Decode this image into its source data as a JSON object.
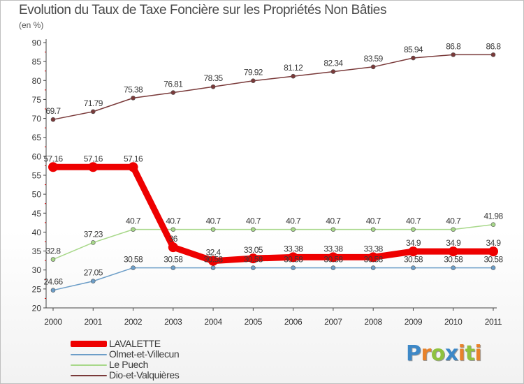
{
  "title": "Evolution du Taux de Taxe Foncière sur les Propriétés Non Bâties",
  "subtitle": "(en %)",
  "brand": {
    "text": "Proxiti",
    "colors": [
      "#3d88c7",
      "#e8822a",
      "#8fc23e",
      "#3d88c7",
      "#e8822a",
      "#8fc23e",
      "#e8822a"
    ]
  },
  "chart_data": {
    "type": "line",
    "x": [
      "2000",
      "2001",
      "2002",
      "2003",
      "2004",
      "2005",
      "2006",
      "2007",
      "2008",
      "2009",
      "2010",
      "2011"
    ],
    "ylim": [
      20,
      90
    ],
    "yticks": [
      20,
      25,
      30,
      35,
      40,
      45,
      50,
      55,
      60,
      65,
      70,
      75,
      80,
      85,
      90
    ],
    "grid": false,
    "legend_position": "bottom-left",
    "series": [
      {
        "name": "LAVALETTE",
        "color": "#ee0000",
        "values": [
          57.16,
          57.16,
          57.16,
          36,
          32.4,
          33.05,
          33.38,
          33.38,
          33.38,
          34.9,
          34.9,
          34.9
        ],
        "labels": [
          "57.16",
          "57.16",
          "57.16",
          "36",
          "32.4",
          "33.05",
          "33.38",
          "33.38",
          "33.38",
          "34.9",
          "34.9",
          "34.9"
        ]
      },
      {
        "name": "Olmet-et-Villecun",
        "color": "#6d9ec8",
        "values": [
          24.66,
          27.05,
          30.58,
          30.58,
          30.58,
          30.58,
          30.58,
          30.58,
          30.58,
          30.58,
          30.58,
          30.58
        ],
        "labels": [
          "24.66",
          "27.05",
          "30.58",
          "30.58",
          "30.58",
          "30.58",
          "30.58",
          "30.58",
          "30.58",
          "30.58",
          "30.58",
          "30.58"
        ]
      },
      {
        "name": "Le Puech",
        "color": "#a8d88a",
        "values": [
          32.8,
          37.23,
          40.7,
          40.7,
          40.7,
          40.7,
          40.7,
          40.7,
          40.7,
          40.7,
          40.7,
          41.98
        ],
        "labels": [
          "32.8",
          "37.23",
          "40.7",
          "40.7",
          "40.7",
          "40.7",
          "40.7",
          "40.7",
          "40.7",
          "40.7",
          "40.7",
          "41.98"
        ]
      },
      {
        "name": "Dio-et-Valquières",
        "color": "#7a3a3a",
        "values": [
          69.7,
          71.79,
          75.38,
          76.81,
          78.35,
          79.92,
          81.12,
          82.34,
          83.59,
          85.94,
          86.8,
          86.8
        ],
        "labels": [
          "69.7",
          "71.79",
          "75.38",
          "76.81",
          "78.35",
          "79.92",
          "81.12",
          "82.34",
          "83.59",
          "85.94",
          "86.8",
          "86.8"
        ]
      }
    ]
  }
}
